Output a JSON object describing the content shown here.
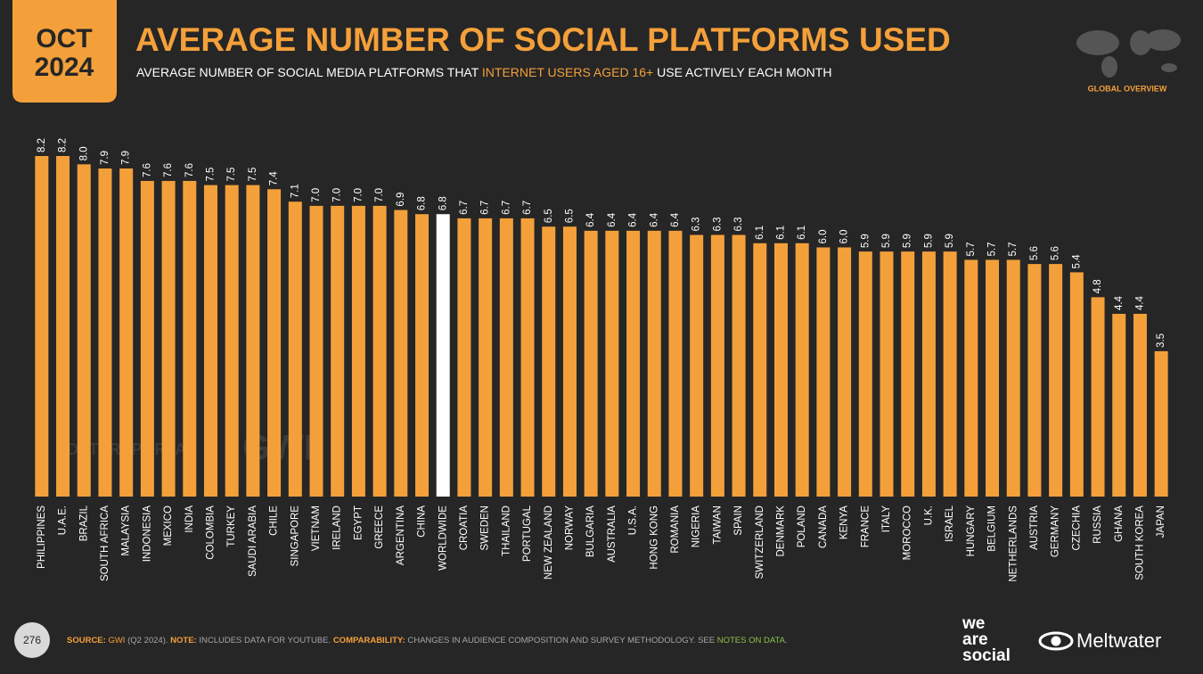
{
  "header": {
    "month": "OCT",
    "year": "2024",
    "region": "GLOBAL OVERVIEW",
    "page": "276"
  },
  "chart_data": {
    "type": "bar",
    "title": "AVERAGE NUMBER OF SOCIAL PLATFORMS USED",
    "subtitle": [
      "AVERAGE NUMBER OF SOCIAL MEDIA PLATFORMS THAT ",
      "INTERNET USERS AGED 16+",
      " USE ACTIVELY EACH MONTH"
    ],
    "categories": [
      "PHILIPPINES",
      "U.A.E.",
      "BRAZIL",
      "SOUTH AFRICA",
      "MALAYSIA",
      "INDONESIA",
      "MEXICO",
      "INDIA",
      "COLOMBIA",
      "TURKEY",
      "SAUDI ARABIA",
      "CHILE",
      "SINGAPORE",
      "VIETNAM",
      "IRELAND",
      "EGYPT",
      "GREECE",
      "ARGENTINA",
      "CHINA",
      "WORLDWIDE",
      "CROATIA",
      "SWEDEN",
      "THAILAND",
      "PORTUGAL",
      "NEW ZEALAND",
      "NORWAY",
      "BULGARIA",
      "AUSTRALIA",
      "U.S.A.",
      "HONG KONG",
      "ROMANIA",
      "NIGERIA",
      "TAIWAN",
      "SPAIN",
      "SWITZERLAND",
      "DENMARK",
      "POLAND",
      "CANADA",
      "KENYA",
      "FRANCE",
      "ITALY",
      "MOROCCO",
      "U.K.",
      "ISRAEL",
      "HUNGARY",
      "BELGIUM",
      "NETHERLANDS",
      "AUSTRIA",
      "GERMANY",
      "CZECHIA",
      "RUSSIA",
      "GHANA",
      "SOUTH KOREA",
      "JAPAN"
    ],
    "values": [
      8.2,
      8.2,
      8.0,
      7.9,
      7.9,
      7.6,
      7.6,
      7.6,
      7.5,
      7.5,
      7.5,
      7.4,
      7.1,
      7.0,
      7.0,
      7.0,
      7.0,
      6.9,
      6.8,
      6.8,
      6.7,
      6.7,
      6.7,
      6.7,
      6.5,
      6.5,
      6.4,
      6.4,
      6.4,
      6.4,
      6.4,
      6.3,
      6.3,
      6.3,
      6.1,
      6.1,
      6.1,
      6.0,
      6.0,
      5.9,
      5.9,
      5.9,
      5.9,
      5.9,
      5.7,
      5.7,
      5.7,
      5.6,
      5.6,
      5.4,
      4.8,
      4.4,
      4.4,
      3.5
    ],
    "value_labels": [
      "8.2",
      "8.2",
      "8.0",
      "7.9",
      "7.9",
      "7.6",
      "7.6",
      "7.6",
      "7.5",
      "7.5",
      "7.5",
      "7.4",
      "7.1",
      "7.0",
      "7.0",
      "7.0",
      "7.0",
      "6.9",
      "6.8",
      "6.8",
      "6.7",
      "6.7",
      "6.7",
      "6.7",
      "6.5",
      "6.5",
      "6.4",
      "6.4",
      "6.4",
      "6.4",
      "6.4",
      "6.3",
      "6.3",
      "6.3",
      "6.1",
      "6.1",
      "6.1",
      "6.0",
      "6.0",
      "5.9",
      "5.9",
      "5.9",
      "5.9",
      "5.9",
      "5.7",
      "5.7",
      "5.7",
      "5.6",
      "5.6",
      "5.4",
      "4.8",
      "4.4",
      "4.4",
      "3.5"
    ],
    "color": "#f4a03a",
    "highlight_color": "#ffffff",
    "highlight_index": 19,
    "ylim": [
      0,
      8.2
    ]
  },
  "footer": {
    "source": [
      "SOURCE: ",
      "GWI",
      " (Q2 2024). ",
      "NOTE: ",
      "INCLUDES DATA FOR YOUTUBE. ",
      "COMPARABILITY: ",
      "CHANGES IN AUDIENCE COMPOSITION AND SURVEY METHODOLOGY. SEE ",
      "NOTES ON DATA",
      "."
    ],
    "logo1": [
      "we",
      "are",
      "social"
    ],
    "logo2": "Meltwater",
    "watermark": [
      "DATAREPORTAL",
      "GWI."
    ]
  }
}
